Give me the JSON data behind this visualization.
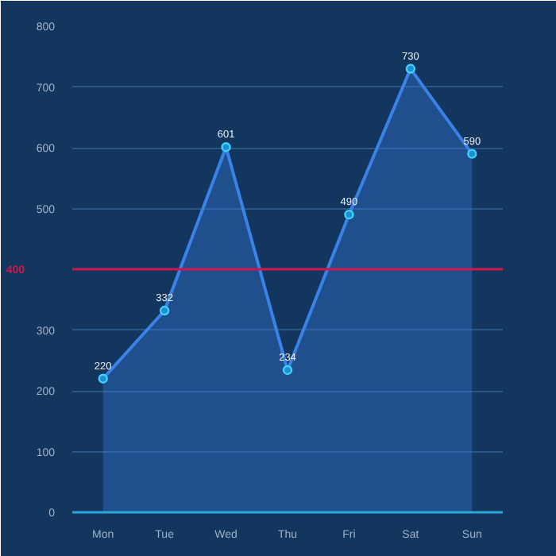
{
  "chart_data": {
    "type": "area",
    "categories": [
      "Mon",
      "Tue",
      "Wed",
      "Thu",
      "Fri",
      "Sat",
      "Sun"
    ],
    "series": [
      {
        "color": "#3a82e6",
        "values": [
          220,
          332,
          601,
          234,
          490,
          730,
          590
        ]
      }
    ],
    "ylim": [
      0,
      800
    ],
    "yticks": [
      0,
      100,
      200,
      300,
      {
        "value": 400,
        "label": null
      },
      500,
      600,
      700,
      800
    ],
    "grid": "y",
    "marker": "circle",
    "data_labels": true,
    "ref_lines": [
      {
        "axis": "y",
        "value": 400,
        "label": "400",
        "color": "#d0164c"
      }
    ]
  }
}
